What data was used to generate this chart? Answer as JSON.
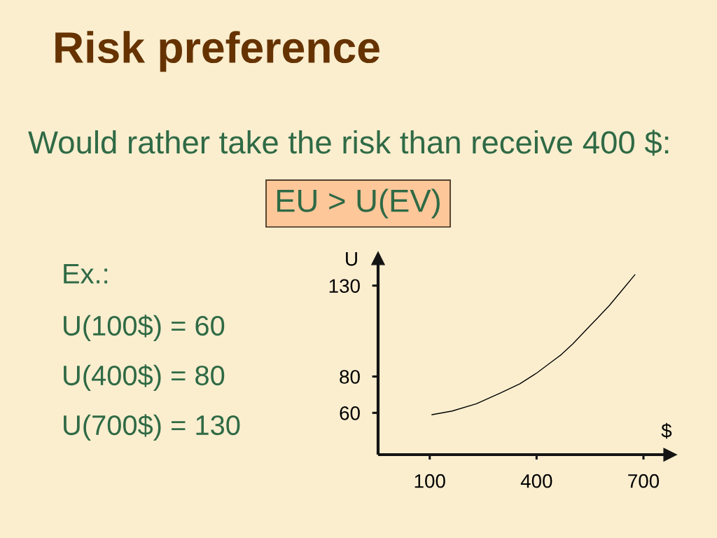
{
  "chart_data": {
    "type": "line",
    "title": "Risk preference",
    "subtitle": "Would rather take the risk than receive 400 $:",
    "xlabel": "$",
    "ylabel": "U",
    "x": [
      106,
      163,
      231,
      299,
      353,
      401,
      435,
      469,
      502,
      536,
      570,
      604,
      638,
      676
    ],
    "series": [
      {
        "color": "#000000",
        "values": [
          59,
          61,
          65,
          71,
          76,
          82,
          87,
          92,
          98,
          105,
          112,
          119,
          127,
          136
        ]
      }
    ],
    "xlim": [
      -45,
      775
    ],
    "ylim": [
      37,
      145
    ],
    "xticks": [
      100,
      400,
      700
    ],
    "yticks": [
      60,
      80,
      130
    ],
    "grid": false,
    "marker": "none",
    "line_style": "solid",
    "annotations": [
      "EU > U(EV)",
      "Ex.:",
      "U(100$) = 60",
      "U(400$) = 80",
      "U(700$) = 130"
    ]
  }
}
